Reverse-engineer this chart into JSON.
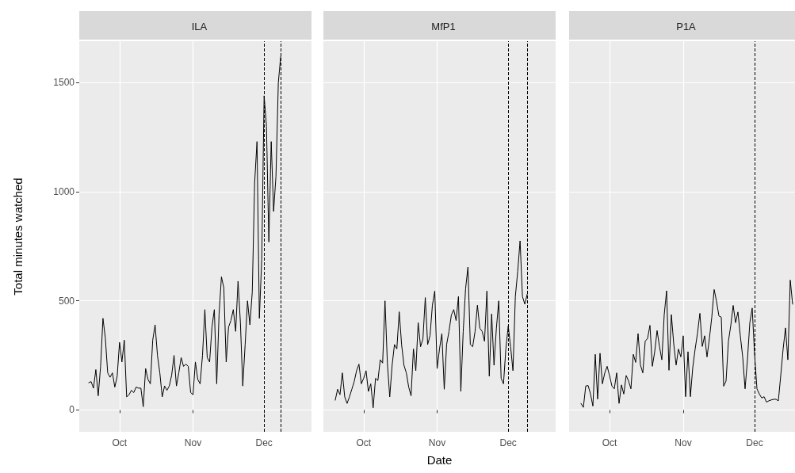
{
  "chart_data": [
    {
      "type": "line",
      "title": "ILA",
      "ylabel": "Total minutes watched",
      "grid": true,
      "marker": "none",
      "line_style": "solid",
      "xlim": [
        "--09-14",
        "--12-21"
      ],
      "xticks": [
        {
          "value": "--10-01",
          "label": "Oct"
        },
        {
          "value": "--11-01",
          "label": "Nov"
        },
        {
          "value": "--12-01",
          "label": "Dec"
        }
      ],
      "ylim": [
        -100,
        1690
      ],
      "yticks": [
        0,
        500,
        1000,
        1500
      ],
      "ref_lines": [
        {
          "axis": "x",
          "value": "--12-01",
          "line_style": "dashed",
          "color": "#000000"
        },
        {
          "axis": "x",
          "value": "--12-08",
          "line_style": "dashed",
          "color": "#000000"
        }
      ],
      "x": [
        "--09-18",
        "--09-19",
        "--09-20",
        "--09-21",
        "--09-22",
        "--09-23",
        "--09-24",
        "--09-25",
        "--09-26",
        "--09-27",
        "--09-28",
        "--09-29",
        "--09-30",
        "--10-01",
        "--10-02",
        "--10-03",
        "--10-04",
        "--10-05",
        "--10-06",
        "--10-07",
        "--10-08",
        "--10-09",
        "--10-10",
        "--10-11",
        "--10-12",
        "--10-13",
        "--10-14",
        "--10-15",
        "--10-16",
        "--10-17",
        "--10-18",
        "--10-19",
        "--10-20",
        "--10-21",
        "--10-22",
        "--10-23",
        "--10-24",
        "--10-25",
        "--10-26",
        "--10-27",
        "--10-28",
        "--10-29",
        "--10-30",
        "--10-31",
        "--11-01",
        "--11-02",
        "--11-03",
        "--11-04",
        "--11-05",
        "--11-06",
        "--11-07",
        "--11-08",
        "--11-09",
        "--11-10",
        "--11-11",
        "--11-12",
        "--11-13",
        "--11-14",
        "--11-15",
        "--11-16",
        "--11-17",
        "--11-18",
        "--11-19",
        "--11-20",
        "--11-21",
        "--11-22",
        "--11-23",
        "--11-24",
        "--11-25",
        "--11-26",
        "--11-27",
        "--11-28",
        "--11-29",
        "--11-30",
        "--12-01",
        "--12-02",
        "--12-03",
        "--12-04",
        "--12-05",
        "--12-06",
        "--12-07",
        "--12-08"
      ],
      "series": [
        {
          "color": "#000000",
          "values": [
            125,
            130,
            100,
            185,
            65,
            200,
            420,
            330,
            170,
            150,
            170,
            105,
            155,
            310,
            220,
            320,
            60,
            70,
            90,
            80,
            105,
            100,
            100,
            15,
            190,
            140,
            120,
            320,
            390,
            250,
            170,
            60,
            110,
            90,
            110,
            160,
            250,
            110,
            170,
            240,
            200,
            210,
            200,
            80,
            70,
            220,
            140,
            120,
            250,
            460,
            240,
            220,
            380,
            460,
            120,
            440,
            610,
            560,
            220,
            380,
            410,
            460,
            360,
            590,
            400,
            110,
            300,
            500,
            390,
            540,
            1040,
            1230,
            420,
            690,
            1440,
            1300,
            770,
            1230,
            910,
            1070,
            1500,
            1620
          ]
        }
      ]
    },
    {
      "type": "line",
      "title": "MfP1",
      "xlabel": "Date",
      "grid": true,
      "marker": "none",
      "line_style": "solid",
      "tick_labels": "x",
      "xlim": [
        "--09-14",
        "--12-21"
      ],
      "xticks": [
        {
          "value": "--10-01",
          "label": "Oct"
        },
        {
          "value": "--11-01",
          "label": "Nov"
        },
        {
          "value": "--12-01",
          "label": "Dec"
        }
      ],
      "ylim": [
        -100,
        1690
      ],
      "yticks": [
        0,
        500,
        1000,
        1500
      ],
      "ref_lines": [
        {
          "axis": "x",
          "value": "--12-01",
          "line_style": "dashed",
          "color": "#000000"
        },
        {
          "axis": "x",
          "value": "--12-09",
          "line_style": "dashed",
          "color": "#000000"
        }
      ],
      "x": [
        "--09-19",
        "--09-20",
        "--09-21",
        "--09-22",
        "--09-23",
        "--09-24",
        "--09-25",
        "--09-26",
        "--09-27",
        "--09-28",
        "--09-29",
        "--09-30",
        "--10-01",
        "--10-02",
        "--10-03",
        "--10-04",
        "--10-05",
        "--10-06",
        "--10-07",
        "--10-08",
        "--10-09",
        "--10-10",
        "--10-11",
        "--10-12",
        "--10-13",
        "--10-14",
        "--10-15",
        "--10-16",
        "--10-17",
        "--10-18",
        "--10-19",
        "--10-20",
        "--10-21",
        "--10-22",
        "--10-23",
        "--10-24",
        "--10-25",
        "--10-26",
        "--10-27",
        "--10-28",
        "--10-29",
        "--10-30",
        "--10-31",
        "--11-01",
        "--11-02",
        "--11-03",
        "--11-04",
        "--11-05",
        "--11-06",
        "--11-07",
        "--11-08",
        "--11-09",
        "--11-10",
        "--11-11",
        "--11-12",
        "--11-13",
        "--11-14",
        "--11-15",
        "--11-16",
        "--11-17",
        "--11-18",
        "--11-19",
        "--11-20",
        "--11-21",
        "--11-22",
        "--11-23",
        "--11-24",
        "--11-25",
        "--11-26",
        "--11-27",
        "--11-28",
        "--11-29",
        "--11-30",
        "--12-01",
        "--12-02",
        "--12-03",
        "--12-04",
        "--12-05",
        "--12-06",
        "--12-07",
        "--12-08",
        "--12-09"
      ],
      "series": [
        {
          "color": "#000000",
          "values": [
            45,
            95,
            70,
            170,
            60,
            30,
            60,
            95,
            130,
            180,
            210,
            120,
            145,
            180,
            85,
            120,
            10,
            145,
            135,
            230,
            215,
            500,
            215,
            60,
            205,
            300,
            280,
            450,
            300,
            205,
            170,
            105,
            65,
            280,
            180,
            400,
            290,
            325,
            515,
            300,
            340,
            480,
            545,
            190,
            280,
            350,
            95,
            300,
            360,
            435,
            460,
            410,
            520,
            85,
            360,
            555,
            655,
            300,
            290,
            360,
            480,
            375,
            360,
            315,
            545,
            155,
            440,
            205,
            375,
            500,
            145,
            120,
            280,
            385,
            290,
            180,
            520,
            635,
            775,
            520,
            485,
            530
          ]
        }
      ]
    },
    {
      "type": "line",
      "title": "P1A",
      "grid": true,
      "marker": "none",
      "line_style": "solid",
      "tick_labels": "x",
      "xlim": [
        "--09-14",
        "--12-18"
      ],
      "xticks": [
        {
          "value": "--10-01",
          "label": "Oct"
        },
        {
          "value": "--11-01",
          "label": "Nov"
        },
        {
          "value": "--12-01",
          "label": "Dec"
        }
      ],
      "ylim": [
        -100,
        1690
      ],
      "yticks": [
        0,
        500,
        1000,
        1500
      ],
      "ref_lines": [
        {
          "axis": "x",
          "value": "--12-01",
          "line_style": "dashed",
          "color": "#000000"
        }
      ],
      "x": [
        "--09-19",
        "--09-20",
        "--09-21",
        "--09-22",
        "--09-23",
        "--09-24",
        "--09-25",
        "--09-26",
        "--09-27",
        "--09-28",
        "--09-29",
        "--09-30",
        "--10-01",
        "--10-02",
        "--10-03",
        "--10-04",
        "--10-05",
        "--10-06",
        "--10-07",
        "--10-08",
        "--10-09",
        "--10-10",
        "--10-11",
        "--10-12",
        "--10-13",
        "--10-14",
        "--10-15",
        "--10-16",
        "--10-17",
        "--10-18",
        "--10-19",
        "--10-20",
        "--10-21",
        "--10-22",
        "--10-23",
        "--10-24",
        "--10-25",
        "--10-26",
        "--10-27",
        "--10-28",
        "--10-29",
        "--10-30",
        "--10-31",
        "--11-01",
        "--11-02",
        "--11-03",
        "--11-04",
        "--11-05",
        "--11-06",
        "--11-07",
        "--11-08",
        "--11-09",
        "--11-10",
        "--11-11",
        "--11-12",
        "--11-13",
        "--11-14",
        "--11-15",
        "--11-16",
        "--11-17",
        "--11-18",
        "--11-19",
        "--11-20",
        "--11-21",
        "--11-22",
        "--11-23",
        "--11-24",
        "--11-25",
        "--11-26",
        "--11-27",
        "--11-28",
        "--11-29",
        "--11-30",
        "--12-01",
        "--12-02",
        "--12-03",
        "--12-04",
        "--12-05",
        "--12-06",
        "--12-07",
        "--12-08",
        "--12-09",
        "--12-10",
        "--12-11",
        "--12-12",
        "--12-13",
        "--12-14",
        "--12-15",
        "--12-16",
        "--12-17"
      ],
      "series": [
        {
          "color": "#000000",
          "values": [
            30,
            12,
            110,
            112,
            73,
            18,
            255,
            50,
            260,
            120,
            170,
            200,
            158,
            110,
            97,
            170,
            30,
            115,
            73,
            158,
            133,
            97,
            255,
            218,
            350,
            206,
            170,
            315,
            328,
            388,
            200,
            267,
            364,
            291,
            230,
            437,
            546,
            182,
            437,
            303,
            206,
            279,
            243,
            340,
            61,
            267,
            61,
            194,
            279,
            352,
            443,
            291,
            340,
            243,
            328,
            425,
            552,
            498,
            431,
            425,
            109,
            133,
            315,
            388,
            479,
            400,
            449,
            340,
            243,
            97,
            230,
            400,
            467,
            255,
            97,
            73,
            55,
            61,
            36,
            42,
            46,
            49,
            49,
            42,
            158,
            279,
            376,
            230,
            595,
            485
          ]
        }
      ]
    }
  ]
}
